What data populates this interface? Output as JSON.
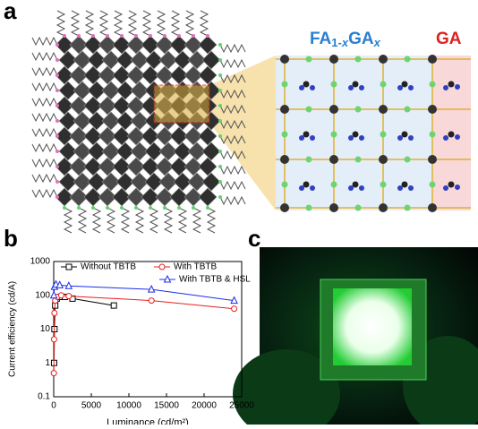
{
  "panels": {
    "a": "a",
    "b": "b",
    "c": "c"
  },
  "formula": [
    "FA",
    "1-",
    "x",
    "GA",
    "x"
  ],
  "ga_label": "GA",
  "chart_data": {
    "type": "line",
    "x_label": "Luminance (cd/m²)",
    "y_label": "Current efficiency (cd/A)",
    "xlim": [
      0,
      25000
    ],
    "xticks": [
      0,
      5000,
      10000,
      15000,
      20000,
      25000
    ],
    "ylim": [
      0.1,
      1000
    ],
    "yticks": [
      0.1,
      1,
      10,
      100,
      1000
    ],
    "ylog": true,
    "legend": "top",
    "series": [
      {
        "name": "Without TBTB",
        "color": "#000000",
        "marker": "square",
        "x": [
          50,
          100,
          200,
          400,
          800,
          1500,
          2500,
          8000
        ],
        "values": [
          1,
          10,
          50,
          80,
          90,
          90,
          80,
          50
        ]
      },
      {
        "name": "With TBTB",
        "color": "#e8201c",
        "marker": "circle",
        "x": [
          20,
          50,
          100,
          200,
          500,
          1000,
          2000,
          13000,
          24000
        ],
        "values": [
          0.5,
          5,
          30,
          70,
          90,
          100,
          95,
          70,
          40
        ]
      },
      {
        "name": "With TBTB & HSL",
        "color": "#1c2de8",
        "marker": "triangle",
        "x": [
          20,
          100,
          300,
          800,
          2000,
          13000,
          24000
        ],
        "values": [
          100,
          180,
          210,
          200,
          190,
          150,
          70
        ]
      }
    ]
  }
}
